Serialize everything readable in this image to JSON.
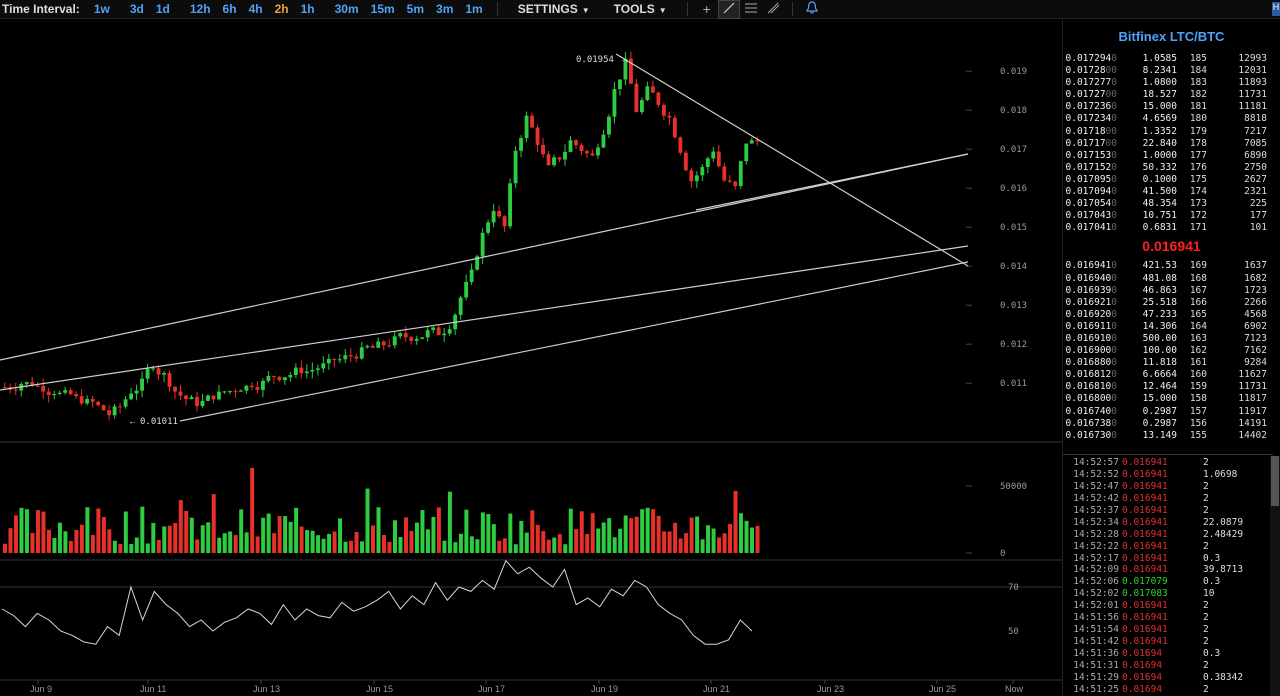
{
  "toolbar": {
    "interval_label": "Time Interval:",
    "intervals": [
      "1w",
      "3d",
      "1d",
      "12h",
      "6h",
      "4h",
      "2h",
      "1h",
      "30m",
      "15m",
      "5m",
      "3m",
      "1m"
    ],
    "active_interval": "2h",
    "settings_label": "SETTINGS",
    "tools_label": "TOOLS",
    "tool_icons": [
      "crosshair-icon",
      "trendline-icon",
      "fib-lines-icon",
      "draw-pen-icon"
    ],
    "alert_icon": "bell-icon",
    "corner_label": "H"
  },
  "chart": {
    "high_label": "0.01954",
    "low_label": "0.01011",
    "price_ticks": [
      "0.019",
      "0.018",
      "0.017",
      "0.016",
      "0.015",
      "0.014",
      "0.013",
      "0.012",
      "0.011"
    ],
    "volume_ticks": [
      "50000",
      "0"
    ],
    "rsi_ticks": [
      "70",
      "50"
    ],
    "date_labels": [
      "Jun 9",
      "Jun 11",
      "Jun 13",
      "Jun 15",
      "Jun 17",
      "Jun 19",
      "Jun 21",
      "Jun 23",
      "Jun 25",
      "Now"
    ],
    "colors": {
      "up": "#2ecc40",
      "down": "#e8302a",
      "line": "#cfcfcf",
      "grid": "#1a1a1a"
    }
  },
  "chart_data": {
    "type": "candlestick",
    "title": "",
    "ylim": [
      0.0098,
      0.0198
    ],
    "price_path": [
      0.0109,
      0.011,
      0.011,
      0.0109,
      0.0108,
      0.0107,
      0.0106,
      0.0105,
      0.0104,
      0.0102,
      0.0104,
      0.0108,
      0.011,
      0.0115,
      0.0112,
      0.0108,
      0.0106,
      0.0105,
      0.0106,
      0.0107,
      0.0108,
      0.0109,
      0.011,
      0.011,
      0.0112,
      0.0112,
      0.0113,
      0.0113,
      0.0114,
      0.0115,
      0.0116,
      0.0117,
      0.0118,
      0.0119,
      0.012,
      0.0121,
      0.0122,
      0.0122,
      0.0123,
      0.0123,
      0.0125,
      0.0132,
      0.0138,
      0.0148,
      0.0155,
      0.015,
      0.017,
      0.0178,
      0.0172,
      0.0165,
      0.0168,
      0.0172,
      0.017,
      0.0168,
      0.0175,
      0.0185,
      0.0192,
      0.018,
      0.0185,
      0.0182,
      0.0178,
      0.017,
      0.0162,
      0.0165,
      0.017,
      0.0162,
      0.016,
      0.0172,
      0.0172
    ],
    "volume_max": 65000,
    "rsi_range": [
      30,
      80
    ],
    "rsi_path": [
      60,
      57,
      52,
      58,
      55,
      50,
      48,
      45,
      44,
      52,
      48,
      70,
      55,
      68,
      62,
      58,
      52,
      55,
      50,
      54,
      56,
      60,
      58,
      53,
      62,
      55,
      60,
      57,
      56,
      63,
      59,
      61,
      64,
      68,
      60,
      66,
      62,
      72,
      64,
      70,
      68,
      73,
      69,
      82,
      76,
      79,
      74,
      70,
      78,
      62,
      65,
      61,
      69,
      66,
      73,
      70,
      62,
      58,
      55,
      48,
      44,
      44,
      46,
      55,
      50
    ]
  },
  "orderbook": {
    "title": "Bitfinex LTC/BTC",
    "mid_price": "0.016941",
    "asks": [
      [
        "0.017294",
        "0",
        "1.0585",
        "185",
        "12993"
      ],
      [
        "0.01728",
        "00",
        "8.2341",
        "184",
        "12031"
      ],
      [
        "0.017277",
        "0",
        "1.0800",
        "183",
        "11893"
      ],
      [
        "0.01727",
        "00",
        "18.527",
        "182",
        "11731"
      ],
      [
        "0.017236",
        "0",
        "15.000",
        "181",
        "11181"
      ],
      [
        "0.017234",
        "0",
        "4.6569",
        "180",
        "8818"
      ],
      [
        "0.01718",
        "00",
        "1.3352",
        "179",
        "7217"
      ],
      [
        "0.01717",
        "00",
        "22.840",
        "178",
        "7085"
      ],
      [
        "0.017153",
        "0",
        "1.0000",
        "177",
        "6890"
      ],
      [
        "0.017152",
        "0",
        "50.332",
        "176",
        "2750"
      ],
      [
        "0.017095",
        "0",
        "0.1000",
        "175",
        "2627"
      ],
      [
        "0.017094",
        "0",
        "41.500",
        "174",
        "2321"
      ],
      [
        "0.017054",
        "0",
        "48.354",
        "173",
        "225"
      ],
      [
        "0.017043",
        "0",
        "10.751",
        "172",
        "177"
      ],
      [
        "0.017041",
        "0",
        "0.6831",
        "171",
        "101"
      ]
    ],
    "bids": [
      [
        "0.016941",
        "0",
        "421.53",
        "169",
        "1637"
      ],
      [
        "0.016940",
        "0",
        "481.08",
        "168",
        "1682"
      ],
      [
        "0.016939",
        "0",
        "46.863",
        "167",
        "1723"
      ],
      [
        "0.016921",
        "0",
        "25.518",
        "166",
        "2266"
      ],
      [
        "0.016920",
        "0",
        "47.233",
        "165",
        "4568"
      ],
      [
        "0.016911",
        "0",
        "14.306",
        "164",
        "6902"
      ],
      [
        "0.016910",
        "0",
        "500.00",
        "163",
        "7123"
      ],
      [
        "0.016900",
        "0",
        "100.00",
        "162",
        "7162"
      ],
      [
        "0.016880",
        "0",
        "11.818",
        "161",
        "9284"
      ],
      [
        "0.016812",
        "0",
        "6.6664",
        "160",
        "11627"
      ],
      [
        "0.016810",
        "0",
        "12.464",
        "159",
        "11731"
      ],
      [
        "0.016800",
        "0",
        "15.000",
        "158",
        "11817"
      ],
      [
        "0.016740",
        "0",
        "0.2987",
        "157",
        "11917"
      ],
      [
        "0.016738",
        "0",
        "0.2987",
        "156",
        "14191"
      ],
      [
        "0.016730",
        "0",
        "13.149",
        "155",
        "14402"
      ]
    ]
  },
  "trades": [
    [
      "14:52:57",
      "0.016941",
      "down",
      "2"
    ],
    [
      "14:52:52",
      "0.016941",
      "down",
      "1.0698"
    ],
    [
      "14:52:47",
      "0.016941",
      "down",
      "2"
    ],
    [
      "14:52:42",
      "0.016941",
      "down",
      "2"
    ],
    [
      "14:52:37",
      "0.016941",
      "down",
      "2"
    ],
    [
      "14:52:34",
      "0.016941",
      "down",
      "22.0879"
    ],
    [
      "14:52:28",
      "0.016941",
      "down",
      "2.48429"
    ],
    [
      "14:52:22",
      "0.016941",
      "down",
      "2"
    ],
    [
      "14:52:17",
      "0.016941",
      "down",
      "0.3"
    ],
    [
      "14:52:09",
      "0.016941",
      "down",
      "39.8713"
    ],
    [
      "14:52:06",
      "0.017079",
      "up",
      "0.3"
    ],
    [
      "14:52:02",
      "0.017083",
      "up",
      "10"
    ],
    [
      "14:52:01",
      "0.016941",
      "down",
      "2"
    ],
    [
      "14:51:56",
      "0.016941",
      "down",
      "2"
    ],
    [
      "14:51:54",
      "0.016941",
      "down",
      "2"
    ],
    [
      "14:51:42",
      "0.016941",
      "down",
      "2"
    ],
    [
      "14:51:36",
      "0.01694",
      "down",
      "0.3"
    ],
    [
      "14:51:31",
      "0.01694",
      "down",
      "2"
    ],
    [
      "14:51:29",
      "0.01694",
      "down",
      "0.38342"
    ],
    [
      "14:51:25",
      "0.01694",
      "down",
      "2"
    ]
  ]
}
